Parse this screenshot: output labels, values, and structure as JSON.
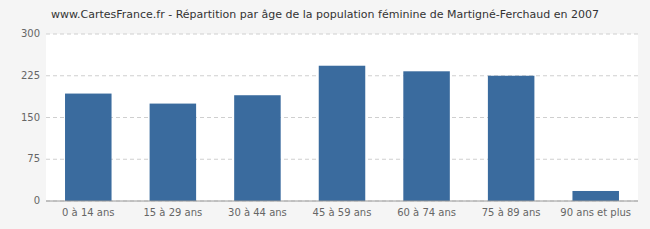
{
  "chart_data": {
    "type": "bar",
    "title": "www.CartesFrance.fr - Répartition par âge de la population féminine de Martigné-Ferchaud en 2007",
    "categories": [
      "0 à 14 ans",
      "15 à 29 ans",
      "30 à 44 ans",
      "45 à 59 ans",
      "60 à 74 ans",
      "75 à 89 ans",
      "90 ans et plus"
    ],
    "values": [
      193,
      175,
      190,
      243,
      233,
      225,
      18
    ],
    "color": "#3a6b9e",
    "ylim": [
      0,
      300
    ],
    "yticks": [
      0,
      75,
      150,
      225,
      300
    ],
    "grid": true
  }
}
